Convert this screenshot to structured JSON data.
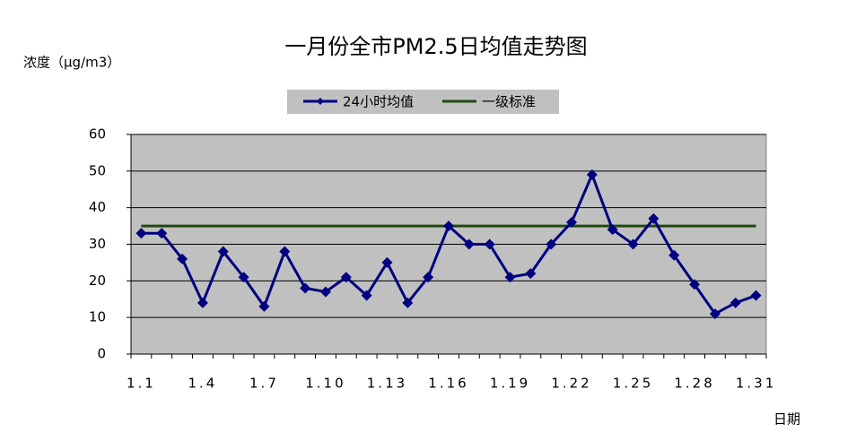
{
  "chart_data": {
    "type": "line",
    "title": "一月份全市PM2.5日均值走势图",
    "y_label": "浓度（μg/m3）",
    "x_label": "日期",
    "categories": [
      "1.1",
      null,
      null,
      "1.4",
      null,
      null,
      "1.7",
      null,
      null,
      "1.10",
      null,
      null,
      "1.13",
      null,
      null,
      "1.16",
      null,
      null,
      "1.19",
      null,
      null,
      "1.22",
      null,
      null,
      "1.25",
      null,
      null,
      "1.28",
      null,
      null,
      "1.31"
    ],
    "series": [
      {
        "name": "24小时均值",
        "color": "#000080",
        "marker": "diamond",
        "values": [
          33,
          33,
          26,
          14,
          28,
          21,
          13,
          28,
          18,
          17,
          21,
          16,
          25,
          14,
          21,
          35,
          30,
          30,
          21,
          22,
          30,
          36,
          49,
          34,
          30,
          37,
          27,
          19,
          11,
          14,
          16
        ]
      },
      {
        "name": "一级标准",
        "color": "#1f4a12",
        "marker": "none",
        "values": [
          35,
          35,
          35,
          35,
          35,
          35,
          35,
          35,
          35,
          35,
          35,
          35,
          35,
          35,
          35,
          35,
          35,
          35,
          35,
          35,
          35,
          35,
          35,
          35,
          35,
          35,
          35,
          35,
          35,
          35,
          35
        ]
      }
    ],
    "ylim": [
      0,
      60
    ],
    "yticks": [
      0,
      10,
      20,
      30,
      40,
      50,
      60
    ],
    "grid": true,
    "plot_background": "#c0c0c0",
    "legend_position": "top"
  }
}
